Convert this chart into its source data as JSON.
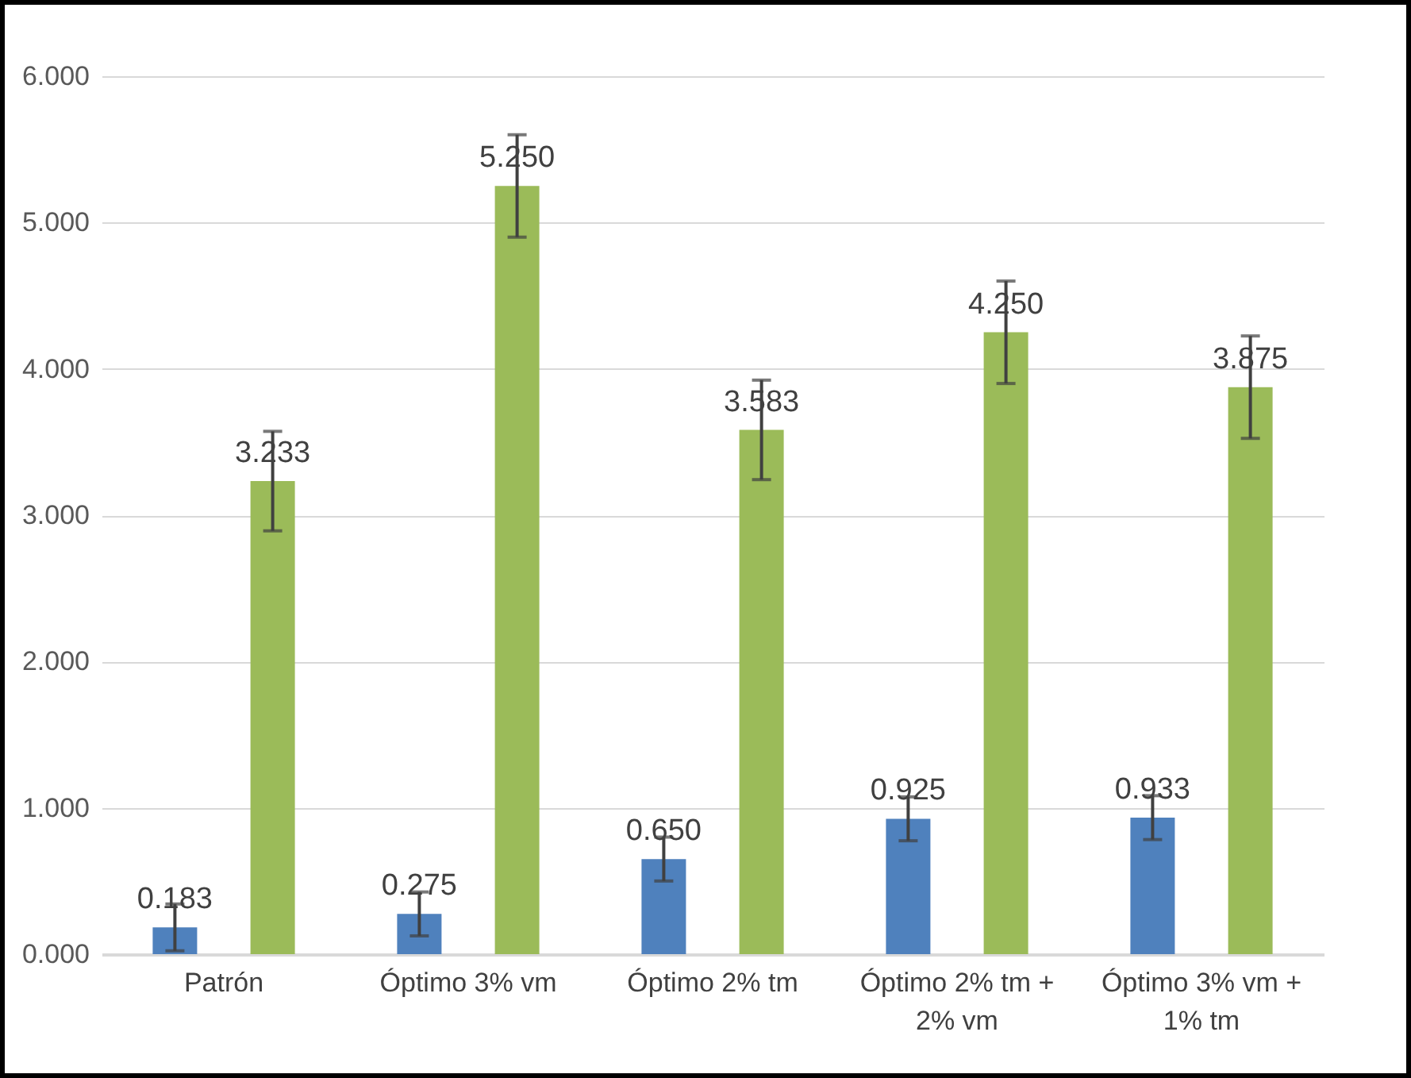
{
  "chart_data": {
    "type": "bar",
    "categories": [
      "Patrón",
      "Óptimo 3% vm",
      "Óptimo 2% tm",
      "Óptimo 2% tm + 2% vm",
      "Óptimo 3% vm + 1% tm"
    ],
    "series": [
      {
        "color": "#4f81bd",
        "values": [
          0.183,
          0.275,
          0.65,
          0.925,
          0.933
        ],
        "errors": [
          0.16,
          0.15,
          0.15,
          0.15,
          0.15
        ],
        "value_labels": [
          "0.183",
          "0.275",
          "0.650",
          "0.925",
          "0.933"
        ]
      },
      {
        "color": "#9bbb59",
        "values": [
          3.233,
          5.25,
          3.583,
          4.25,
          3.875
        ],
        "errors": [
          0.34,
          0.35,
          0.34,
          0.35,
          0.35
        ],
        "value_labels": [
          "3.233",
          "5.250",
          "3.583",
          "4.250",
          "3.875"
        ]
      }
    ],
    "ylim": [
      0,
      6
    ],
    "yticks": [
      {
        "value": 0,
        "label": "0.000"
      },
      {
        "value": 1,
        "label": "1.000"
      },
      {
        "value": 2,
        "label": "2.000"
      },
      {
        "value": 3,
        "label": "3.000"
      },
      {
        "value": 4,
        "label": "4.000"
      },
      {
        "value": 5,
        "label": "5.000"
      },
      {
        "value": 6,
        "label": "6.000"
      }
    ],
    "grid": true
  }
}
